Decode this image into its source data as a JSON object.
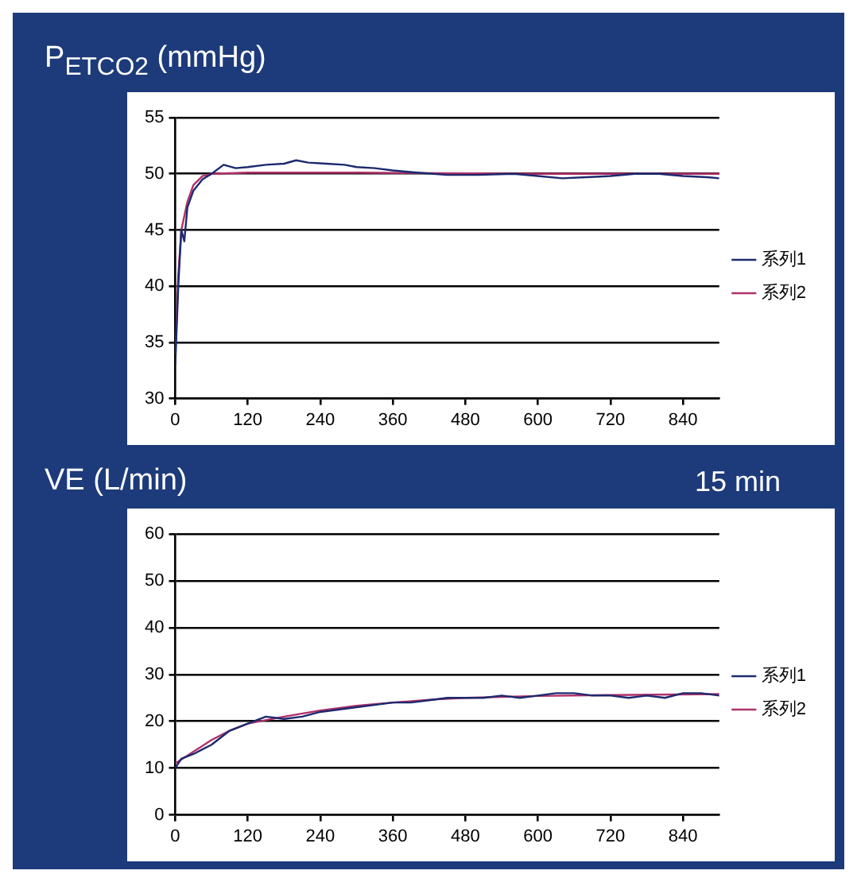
{
  "chart_data": [
    {
      "type": "line",
      "title": "P$_{ETCO2}$ (mmHg)",
      "xlim": [
        0,
        900
      ],
      "xticks": [
        0,
        120,
        240,
        360,
        480,
        600,
        720,
        840
      ],
      "ylim": [
        30,
        55
      ],
      "yticks": [
        30,
        35,
        40,
        45,
        50,
        55
      ],
      "grid": "y",
      "legend": "right",
      "series": [
        {
          "name": "系列1",
          "color": "#1c2a6e",
          "x": [
            0,
            5,
            10,
            15,
            20,
            30,
            45,
            60,
            80,
            100,
            120,
            150,
            180,
            200,
            220,
            250,
            280,
            300,
            330,
            360,
            400,
            450,
            500,
            560,
            600,
            640,
            680,
            720,
            760,
            800,
            840,
            880,
            900
          ],
          "values": [
            33,
            40,
            45,
            44,
            47,
            48.5,
            49.5,
            50,
            50.8,
            50.5,
            50.6,
            50.8,
            50.9,
            51.2,
            51,
            50.9,
            50.8,
            50.6,
            50.5,
            50.3,
            50.1,
            49.9,
            49.9,
            50,
            49.8,
            49.6,
            49.7,
            49.8,
            50,
            50,
            49.8,
            49.7,
            49.6
          ]
        },
        {
          "name": "系列2",
          "color": "#b0306a",
          "x": [
            0,
            5,
            10,
            20,
            30,
            45,
            60,
            120,
            300,
            600,
            900
          ],
          "values": [
            34,
            41,
            45,
            47.5,
            49,
            49.8,
            50,
            50.1,
            50.1,
            50,
            50
          ]
        }
      ]
    },
    {
      "type": "line",
      "title": "VE (L/min)",
      "annotations": [
        "15 min"
      ],
      "xlim": [
        0,
        900
      ],
      "xticks": [
        0,
        120,
        240,
        360,
        480,
        600,
        720,
        840
      ],
      "ylim": [
        0,
        60
      ],
      "yticks": [
        0,
        10,
        20,
        30,
        40,
        50,
        60
      ],
      "grid": "y",
      "legend": "right",
      "series": [
        {
          "name": "系列1",
          "color": "#1c2a6e",
          "x": [
            0,
            10,
            30,
            60,
            90,
            120,
            150,
            180,
            210,
            240,
            270,
            300,
            330,
            360,
            390,
            420,
            450,
            480,
            510,
            540,
            570,
            600,
            630,
            660,
            690,
            720,
            750,
            780,
            810,
            840,
            870,
            900
          ],
          "values": [
            10,
            12,
            13,
            15,
            18,
            19.5,
            21,
            20.5,
            21,
            22,
            22.5,
            23,
            23.5,
            24,
            24,
            24.5,
            25,
            25,
            25,
            25.5,
            25,
            25.5,
            26,
            26,
            25.5,
            25.5,
            25,
            25.5,
            25,
            26,
            26,
            25.5
          ]
        },
        {
          "name": "系列2",
          "color": "#b0306a",
          "x": [
            0,
            30,
            60,
            90,
            120,
            180,
            240,
            300,
            360,
            420,
            480,
            600,
            720,
            900
          ],
          "values": [
            11,
            13.5,
            16,
            18,
            19.5,
            21,
            22.3,
            23.3,
            24,
            24.6,
            25,
            25.4,
            25.6,
            25.8
          ]
        }
      ]
    }
  ]
}
